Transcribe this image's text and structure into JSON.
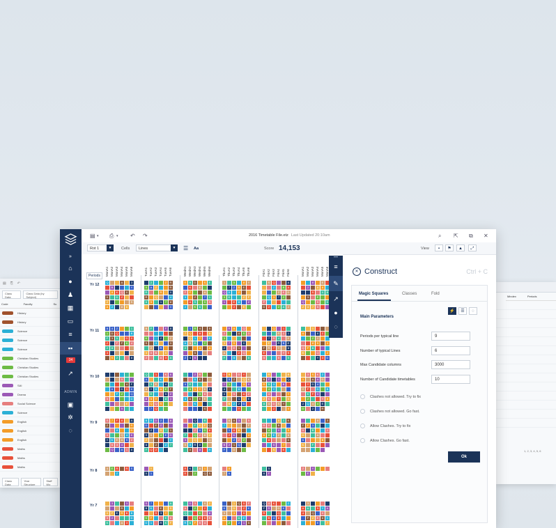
{
  "app": {
    "file_title": "2016 Timetable File.etz",
    "last_updated": "Last Updated 20:10am"
  },
  "toolbar": {
    "rot_select": "Rot 1",
    "cells_label": "Cells",
    "cells_select": "Lines",
    "font_button": "Aa",
    "score_label": "Score",
    "score_value": "14,153",
    "view_label": "View"
  },
  "sidebar": {
    "badge": "34",
    "admin_label": "ADMIN"
  },
  "grid": {
    "periods_button": "Periods",
    "years": [
      "Yr 12",
      "Yr 11",
      "Yr 10",
      "Yr 9",
      "Yr 8",
      "Yr 7"
    ],
    "periods": [
      "MonA1",
      "MonA2",
      "MonA3",
      "MonA4",
      "MonA5",
      "MonA6",
      "TueA1",
      "TueA2",
      "TueA3",
      "TueA4",
      "TueA5",
      "TueA6",
      "WedA1",
      "WedA2",
      "WedA3",
      "WedA4",
      "WedA5",
      "WedA6",
      "ThuA1",
      "ThuA2",
      "ThuA3",
      "ThuA4",
      "ThuA5",
      "ThuA6",
      "FriA1",
      "FriA2",
      "FriA3",
      "FriA4",
      "FriA5",
      "FriA6",
      "MonA1",
      "MonA2",
      "MonA3",
      "MonA4",
      "MonA5",
      "MonA6"
    ],
    "palette": [
      "#f39c28",
      "#3fbf9e",
      "#e8513a",
      "#f1b24a",
      "#6dbb45",
      "#2bb0d6",
      "#9b59b6",
      "#3a62c8",
      "#d4a373",
      "#e67e7e",
      "#8d5b3c",
      "#1f3d6d"
    ]
  },
  "panel": {
    "title": "Construct",
    "shortcut": "Ctrl + C",
    "tabs": [
      "Magic Squares",
      "Classes",
      "Fold"
    ],
    "section_title": "Main Parameters",
    "params": [
      {
        "label": "Periods per typical line",
        "value": "9"
      },
      {
        "label": "Number of typical Lines",
        "value": "6"
      },
      {
        "label": "Max Candidate columns",
        "value": "3000"
      },
      {
        "label": "Number of Candidate timetables",
        "value": "10"
      }
    ],
    "options": [
      "Clashes not allowed. Try to fix",
      "Clashes not allowed. Go fast.",
      "Allow Clashes. Try to fix",
      "Allow Clashes. Go fast."
    ],
    "ok_button": "Ok"
  },
  "bg_left": {
    "toolbar_tabs": [
      "Class Data",
      "Class Data (by Subject)"
    ],
    "headers": [
      "Code",
      "Faculty",
      "Su"
    ],
    "rows": [
      {
        "faculty": "History",
        "color": "#a0522d"
      },
      {
        "faculty": "History",
        "color": "#a0522d"
      },
      {
        "faculty": "Science",
        "color": "#2bb0d6"
      },
      {
        "faculty": "Science",
        "color": "#2bb0d6"
      },
      {
        "faculty": "Science",
        "color": "#2bb0d6"
      },
      {
        "faculty": "Christian Studies",
        "color": "#6dbb45"
      },
      {
        "faculty": "Christian Studies",
        "color": "#6dbb45"
      },
      {
        "faculty": "Christian Studies",
        "color": "#6dbb45"
      },
      {
        "faculty": "SAI",
        "color": "#9b59b6"
      },
      {
        "faculty": "Drama",
        "color": "#9b59b6"
      },
      {
        "faculty": "Social Science",
        "color": "#e67e7e"
      },
      {
        "faculty": "Science",
        "color": "#2bb0d6"
      },
      {
        "faculty": "English",
        "color": "#f39c28"
      },
      {
        "faculty": "English",
        "color": "#f39c28"
      },
      {
        "faculty": "English",
        "color": "#f39c28"
      },
      {
        "faculty": "Maths",
        "color": "#e8513a"
      },
      {
        "faculty": "Maths",
        "color": "#e8513a"
      },
      {
        "faculty": "Maths",
        "color": "#e8513a"
      }
    ],
    "footer_tabs": [
      "Class Data",
      "Year Structure",
      "Staff Wo"
    ]
  },
  "bg_right": {
    "headers": [
      "Mindex",
      "Periods"
    ],
    "note": "1, 2, 3, 4, 5, 6"
  }
}
